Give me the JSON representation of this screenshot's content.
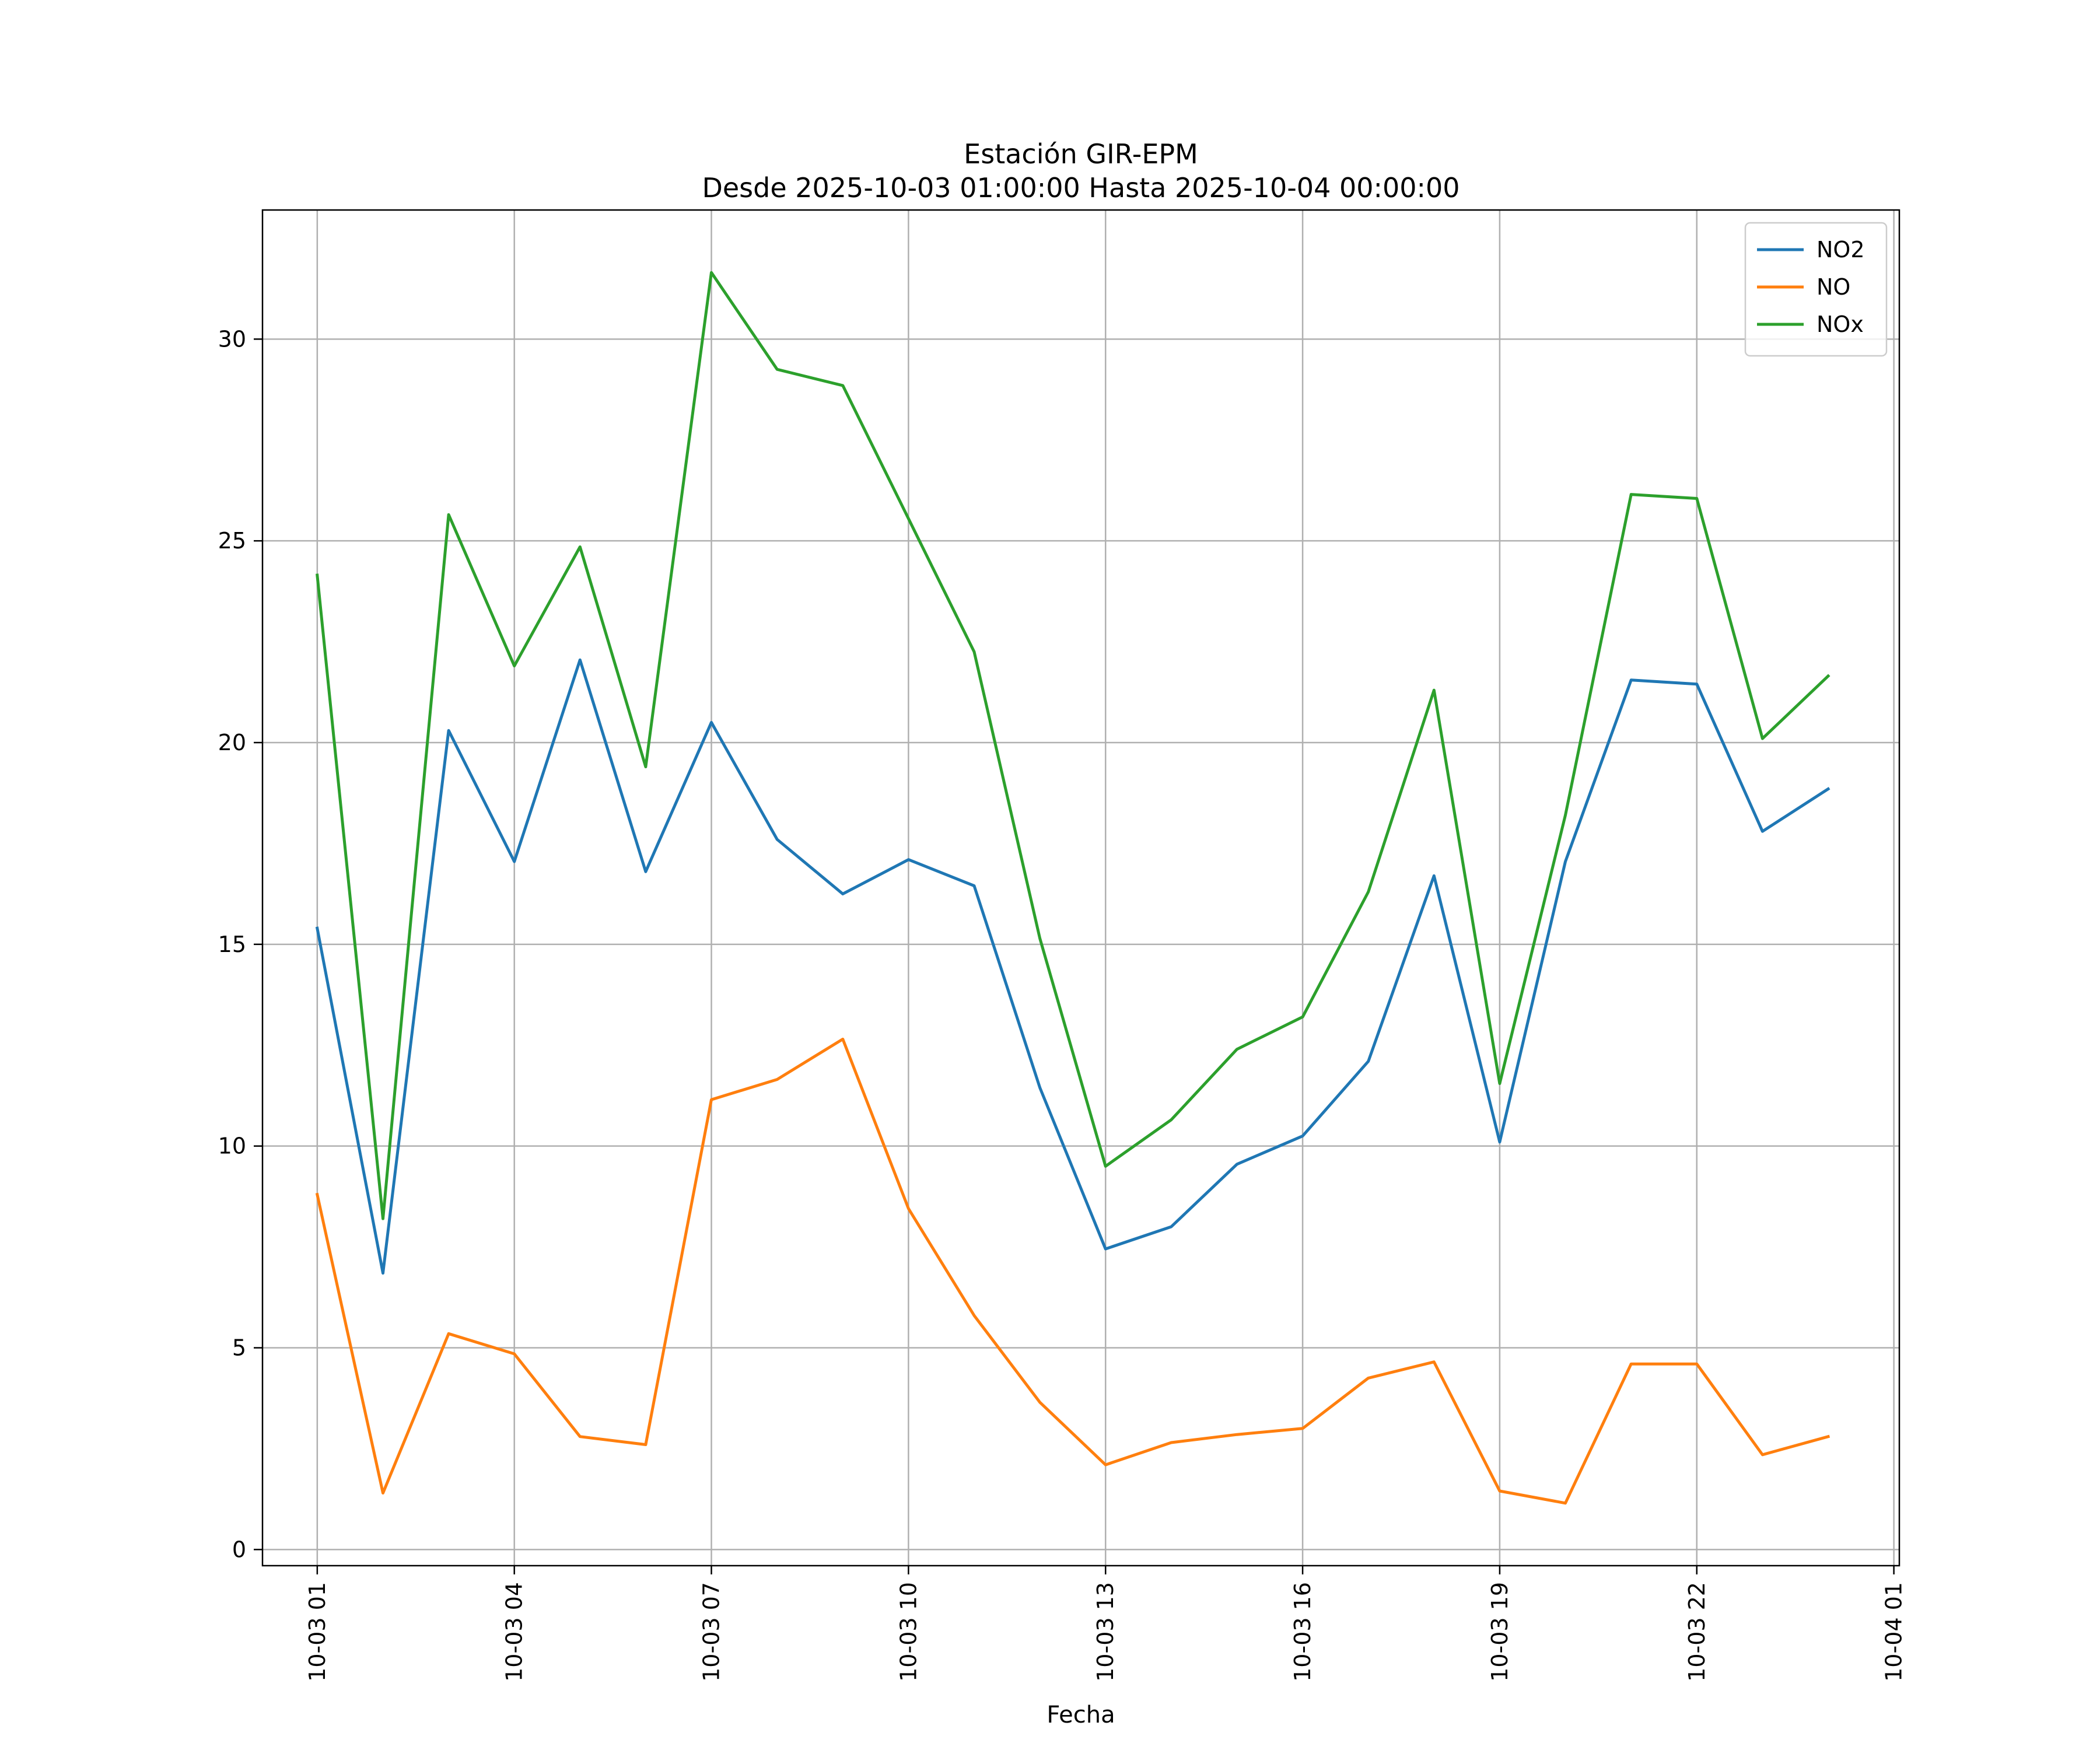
{
  "chart_data": {
    "type": "line",
    "title": "Estación GIR-EPM",
    "subtitle": "Desde 2025-10-03 01:00:00 Hasta 2025-10-04 00:00:00",
    "xlabel": "Fecha",
    "ylabel": "",
    "x": [
      "2025-10-03 01:00",
      "2025-10-03 02:00",
      "2025-10-03 03:00",
      "2025-10-03 04:00",
      "2025-10-03 05:00",
      "2025-10-03 06:00",
      "2025-10-03 07:00",
      "2025-10-03 08:00",
      "2025-10-03 09:00",
      "2025-10-03 10:00",
      "2025-10-03 11:00",
      "2025-10-03 12:00",
      "2025-10-03 13:00",
      "2025-10-03 14:00",
      "2025-10-03 15:00",
      "2025-10-03 16:00",
      "2025-10-03 17:00",
      "2025-10-03 18:00",
      "2025-10-03 19:00",
      "2025-10-03 20:00",
      "2025-10-03 21:00",
      "2025-10-03 22:00",
      "2025-10-03 23:00",
      "2025-10-04 00:00"
    ],
    "xlim": [
      "2025-10-03 00:10",
      "2025-10-04 01:05"
    ],
    "x_ticks": [
      {
        "label": "10-03 01",
        "value": "2025-10-03 01:00"
      },
      {
        "label": "10-03 04",
        "value": "2025-10-03 04:00"
      },
      {
        "label": "10-03 07",
        "value": "2025-10-03 07:00"
      },
      {
        "label": "10-03 10",
        "value": "2025-10-03 10:00"
      },
      {
        "label": "10-03 13",
        "value": "2025-10-03 13:00"
      },
      {
        "label": "10-03 16",
        "value": "2025-10-03 16:00"
      },
      {
        "label": "10-03 19",
        "value": "2025-10-03 19:00"
      },
      {
        "label": "10-03 22",
        "value": "2025-10-03 22:00"
      },
      {
        "label": "10-04 01",
        "value": "2025-10-04 01:00"
      }
    ],
    "ylim": [
      -0.4,
      33.2
    ],
    "y_ticks": [
      0,
      5,
      10,
      15,
      20,
      25,
      30
    ],
    "grid": true,
    "legend_position": "top-right",
    "series": [
      {
        "name": "NO2",
        "color": "#1f77b4",
        "values": [
          15.4,
          6.85,
          20.3,
          17.05,
          22.05,
          16.8,
          20.5,
          17.6,
          16.25,
          17.1,
          16.45,
          11.45,
          7.45,
          8.0,
          9.55,
          10.25,
          12.1,
          16.7,
          10.1,
          17.05,
          21.55,
          21.45,
          17.8,
          18.85
        ]
      },
      {
        "name": "NO",
        "color": "#ff7f0e",
        "values": [
          8.8,
          1.4,
          5.35,
          4.85,
          2.8,
          2.6,
          11.15,
          11.65,
          12.65,
          8.45,
          5.8,
          3.65,
          2.1,
          2.65,
          2.85,
          3.0,
          4.25,
          4.65,
          1.45,
          1.15,
          4.6,
          4.6,
          2.35,
          2.8
        ]
      },
      {
        "name": "NOx",
        "color": "#2ca02c",
        "values": [
          24.15,
          8.2,
          25.65,
          21.9,
          24.85,
          19.4,
          31.65,
          29.25,
          28.85,
          25.55,
          22.25,
          15.15,
          9.5,
          10.65,
          12.4,
          13.2,
          16.3,
          21.3,
          11.55,
          18.2,
          26.15,
          26.05,
          20.1,
          21.65
        ]
      }
    ]
  }
}
